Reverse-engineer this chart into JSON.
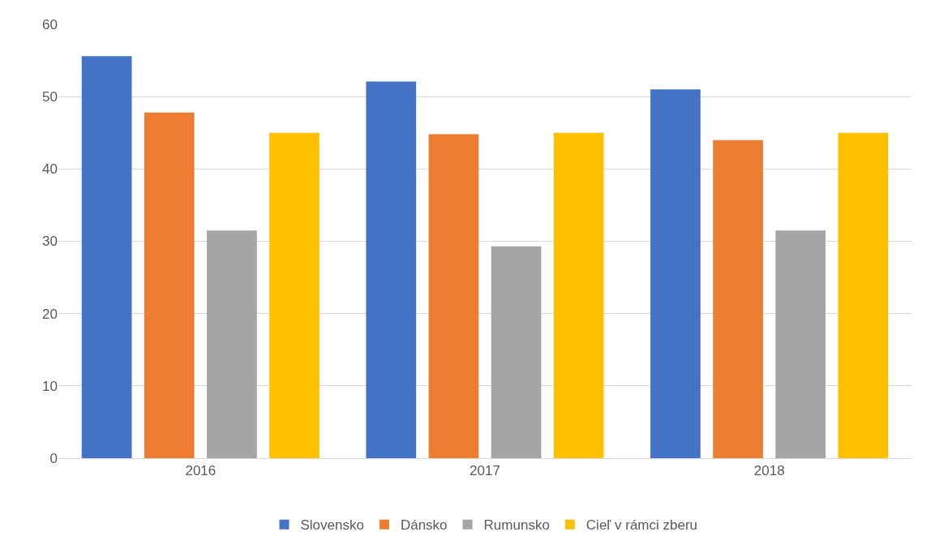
{
  "chart_data": {
    "type": "bar",
    "categories": [
      "2016",
      "2017",
      "2018"
    ],
    "series": [
      {
        "name": "Slovensko",
        "color": "#4472c4",
        "values": [
          55.6,
          52.1,
          51.0
        ]
      },
      {
        "name": "Dánsko",
        "color": "#ed7d31",
        "values": [
          47.8,
          44.8,
          44.0
        ]
      },
      {
        "name": "Rumunsko",
        "color": "#a5a5a5",
        "values": [
          31.5,
          29.3,
          31.5
        ]
      },
      {
        "name": "Cieľ v rámci zberu",
        "color": "#ffc000",
        "values": [
          45,
          45,
          45
        ]
      }
    ],
    "ylim": [
      0,
      60
    ],
    "yticks": [
      0,
      10,
      20,
      30,
      40,
      50,
      60
    ],
    "grid": "y",
    "legend": "bottom"
  }
}
